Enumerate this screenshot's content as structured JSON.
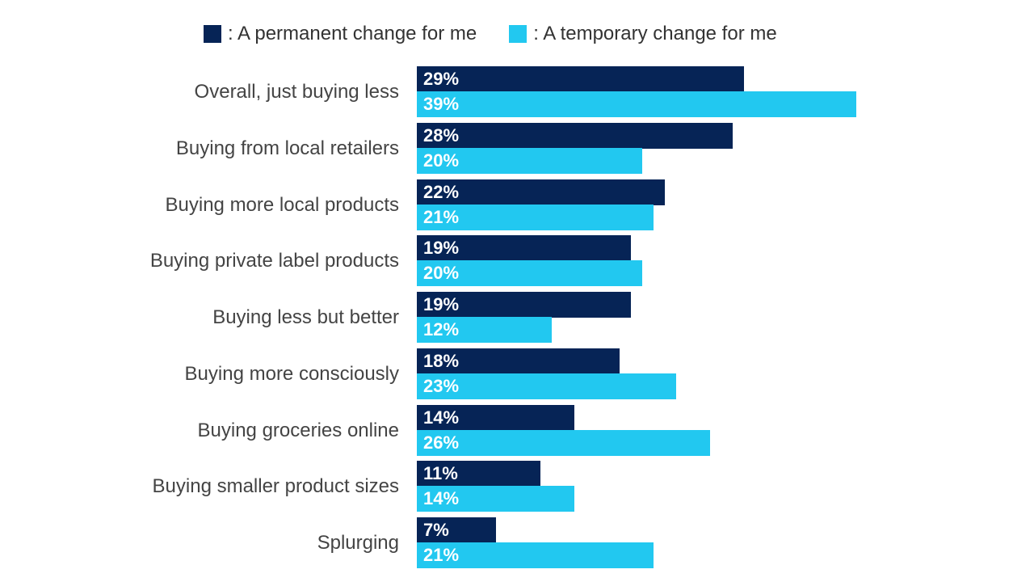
{
  "chart_data": {
    "type": "bar",
    "orientation": "horizontal",
    "title": "",
    "xlabel": "",
    "ylabel": "",
    "xlim": [
      0,
      40
    ],
    "grid": false,
    "legend_position": "top",
    "categories": [
      "Overall, just buying less",
      "Buying from local retailers",
      "Buying more local products",
      "Buying private label products",
      "Buying less but better",
      "Buying more consciously",
      "Buying groceries online",
      "Buying smaller product sizes",
      "Splurging"
    ],
    "series": [
      {
        "name": ": A permanent change for me",
        "color": "#062456",
        "values": [
          29,
          28,
          22,
          19,
          19,
          18,
          14,
          11,
          7
        ],
        "labels": [
          "29%",
          "28%",
          "22%",
          "19%",
          "19%",
          "18%",
          "14%",
          "11%",
          "7%"
        ]
      },
      {
        "name": ": A temporary change for me",
        "color": "#22c8f0",
        "values": [
          39,
          20,
          21,
          20,
          12,
          23,
          26,
          14,
          21
        ],
        "labels": [
          "39%",
          "20%",
          "21%",
          "20%",
          "12%",
          "23%",
          "26%",
          "14%",
          "21%"
        ]
      }
    ]
  }
}
